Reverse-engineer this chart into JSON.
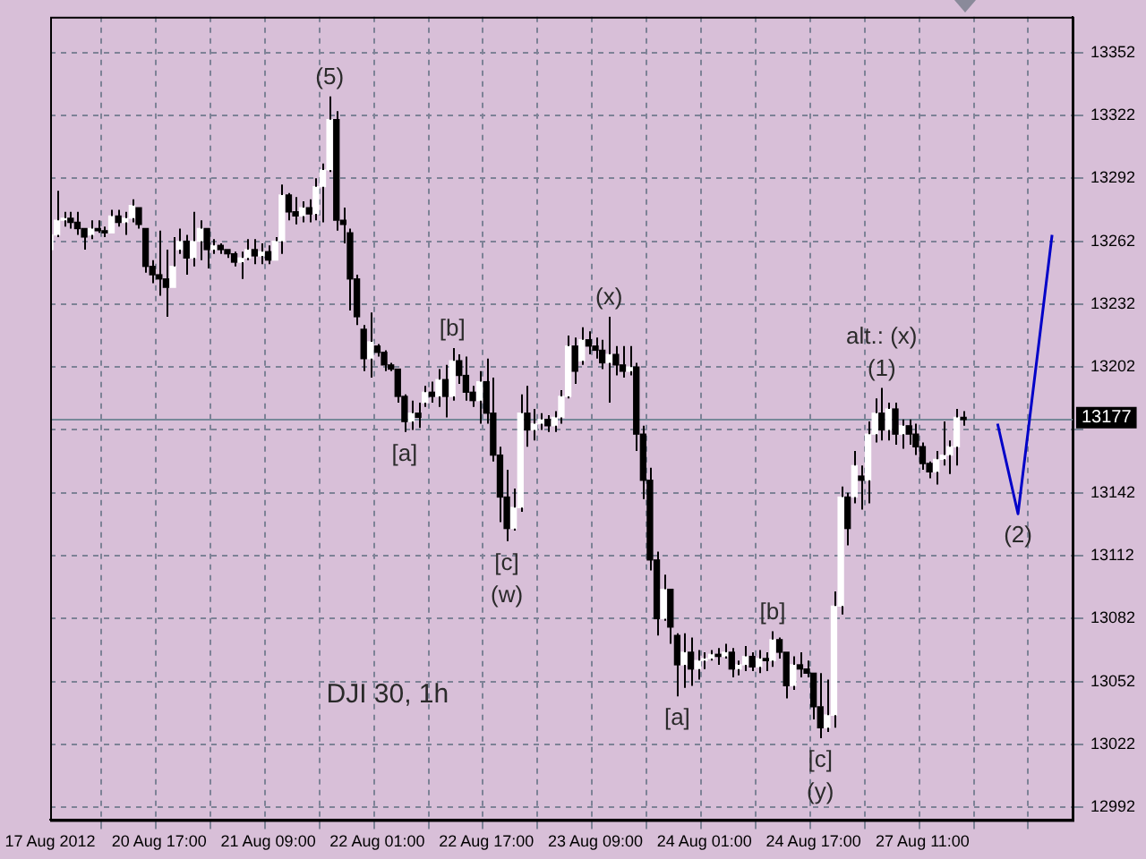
{
  "chart_data": {
    "type": "candlestick",
    "categories": [
      "17 Aug 2012",
      null,
      null,
      null,
      null,
      null,
      null,
      null,
      null,
      null,
      null,
      null,
      null,
      null,
      null,
      null,
      "20 Aug 17:00",
      null,
      null,
      null,
      null,
      null,
      null,
      null,
      null,
      null,
      null,
      null,
      null,
      null,
      null,
      null,
      "21 Aug 09:00",
      null,
      null,
      null,
      null,
      null,
      null,
      null,
      null,
      null,
      null,
      null,
      null,
      null,
      null,
      null,
      "22 Aug 01:00",
      null,
      null,
      null,
      null,
      null,
      null,
      null,
      null,
      null,
      null,
      null,
      null,
      null,
      null,
      null,
      "22 Aug 17:00",
      null,
      null,
      null,
      null,
      null,
      null,
      null,
      null,
      null,
      null,
      null,
      null,
      null,
      null,
      null,
      "23 Aug 09:00",
      null,
      null,
      null,
      null,
      null,
      null,
      null,
      null,
      null,
      null,
      null,
      null,
      null,
      null,
      null,
      "24 Aug 01:00",
      null,
      null,
      null,
      null,
      null,
      null,
      null,
      null,
      null,
      null,
      null,
      null,
      null,
      null,
      null,
      "24 Aug 17:00",
      null,
      null,
      null,
      null,
      null,
      null,
      null,
      null,
      null,
      null,
      null,
      null,
      null,
      null,
      null,
      "27 Aug 11:00",
      null,
      null,
      null,
      null,
      null,
      null,
      null,
      null,
      null,
      null,
      null,
      null,
      null,
      null,
      null,
      null,
      null,
      null,
      null,
      null,
      null,
      null
    ],
    "ohlc": [
      [
        13258,
        13268,
        13253,
        13265
      ],
      [
        13265,
        13286,
        13264,
        13272
      ],
      [
        13272,
        13276,
        13269,
        13273
      ],
      [
        13273,
        13276,
        13268,
        13271
      ],
      [
        13271,
        13276,
        13265,
        13268
      ],
      [
        13268,
        13268,
        13258,
        13264
      ],
      [
        13265,
        13272,
        13263,
        13268
      ],
      [
        13268,
        13272,
        13266,
        13267
      ],
      [
        13267,
        13269,
        13264,
        13266
      ],
      [
        13266,
        13277,
        13266,
        13274
      ],
      [
        13274,
        13277,
        13269,
        13271
      ],
      [
        13271,
        13276,
        13265,
        13273
      ],
      [
        13273,
        13282,
        13271,
        13279
      ],
      [
        13278,
        13278,
        13268,
        13270
      ],
      [
        13268,
        13268,
        13247,
        13250
      ],
      [
        13250,
        13253,
        13242,
        13246
      ],
      [
        13246,
        13267,
        13236,
        13244
      ],
      [
        13244,
        13258,
        13226,
        13240
      ],
      [
        13240,
        13264,
        13240,
        13250
      ],
      [
        13258,
        13268,
        13256,
        13262
      ],
      [
        13262,
        13265,
        13246,
        13254
      ],
      [
        13254,
        13276,
        13250,
        13262
      ],
      [
        13262,
        13272,
        13253,
        13268
      ],
      [
        13268,
        13268,
        13249,
        13258
      ],
      [
        13258,
        13263,
        13256,
        13260
      ],
      [
        13260,
        13261,
        13256,
        13258
      ],
      [
        13258,
        13258,
        13254,
        13256
      ],
      [
        13256,
        13257,
        13250,
        13252
      ],
      [
        13252,
        13257,
        13244,
        13254
      ],
      [
        13254,
        13263,
        13253,
        13258
      ],
      [
        13258,
        13263,
        13251,
        13255
      ],
      [
        13255,
        13261,
        13251,
        13257
      ],
      [
        13257,
        13260,
        13251,
        13253
      ],
      [
        13253,
        13264,
        13253,
        13262
      ],
      [
        13262,
        13289,
        13256,
        13284
      ],
      [
        13284,
        13285,
        13272,
        13276
      ],
      [
        13276,
        13283,
        13270,
        13274
      ],
      [
        13274,
        13281,
        13271,
        13278
      ],
      [
        13278,
        13282,
        13271,
        13275
      ],
      [
        13275,
        13292,
        13272,
        13288
      ],
      [
        13288,
        13299,
        13271,
        13296
      ],
      [
        13296,
        13331,
        13295,
        13320
      ],
      [
        13320,
        13324,
        13267,
        13272
      ],
      [
        13272,
        13278,
        13261,
        13270
      ],
      [
        13266,
        13268,
        13229,
        13244
      ],
      [
        13244,
        13246,
        13222,
        13226
      ],
      [
        13220,
        13222,
        13200,
        13206
      ],
      [
        13206,
        13228,
        13197,
        13214
      ],
      [
        13212,
        13213,
        13207,
        13209
      ],
      [
        13209,
        13210,
        13200,
        13203
      ],
      [
        13203,
        13204,
        13200,
        13201
      ],
      [
        13201,
        13201,
        13185,
        13188
      ],
      [
        13188,
        13189,
        13171,
        13176
      ],
      [
        13176,
        13186,
        13172,
        13180
      ],
      [
        13180,
        13185,
        13173,
        13178
      ],
      [
        13185,
        13193,
        13183,
        13190
      ],
      [
        13190,
        13195,
        13185,
        13188
      ],
      [
        13188,
        13201,
        13183,
        13196
      ],
      [
        13196,
        13203,
        13178,
        13188
      ],
      [
        13188,
        13211,
        13186,
        13205
      ],
      [
        13205,
        13208,
        13194,
        13198
      ],
      [
        13198,
        13207,
        13186,
        13190
      ],
      [
        13190,
        13193,
        13183,
        13186
      ],
      [
        13186,
        13200,
        13175,
        13195
      ],
      [
        13195,
        13206,
        13175,
        13180
      ],
      [
        13180,
        13197,
        13157,
        13160
      ],
      [
        13160,
        13164,
        13128,
        13140
      ],
      [
        13140,
        13153,
        13119,
        13125
      ],
      [
        13125,
        13144,
        13124,
        13135
      ],
      [
        13135,
        13189,
        13133,
        13180
      ],
      [
        13180,
        13193,
        13164,
        13172
      ],
      [
        13172,
        13182,
        13167,
        13175
      ],
      [
        13175,
        13180,
        13172,
        13177
      ],
      [
        13177,
        13179,
        13171,
        13174
      ],
      [
        13174,
        13181,
        13171,
        13178
      ],
      [
        13178,
        13191,
        13175,
        13188
      ],
      [
        13188,
        13217,
        13187,
        13212
      ],
      [
        13212,
        13216,
        13194,
        13200
      ],
      [
        13205,
        13221,
        13203,
        13215
      ],
      [
        13215,
        13219,
        13208,
        13212
      ],
      [
        13212,
        13216,
        13206,
        13210
      ],
      [
        13210,
        13215,
        13201,
        13204
      ],
      [
        13204,
        13226,
        13185,
        13208
      ],
      [
        13208,
        13212,
        13198,
        13203
      ],
      [
        13203,
        13212,
        13197,
        13200
      ],
      [
        13200,
        13212,
        13198,
        13202
      ],
      [
        13202,
        13204,
        13162,
        13170
      ],
      [
        13170,
        13174,
        13139,
        13148
      ],
      [
        13148,
        13154,
        13105,
        13110
      ],
      [
        13110,
        13114,
        13074,
        13082
      ],
      [
        13082,
        13103,
        13081,
        13096
      ],
      [
        13096,
        13096,
        13070,
        13078
      ],
      [
        13074,
        13075,
        13045,
        13060
      ],
      [
        13060,
        13075,
        13049,
        13066
      ],
      [
        13066,
        13073,
        13050,
        13058
      ],
      [
        13058,
        13067,
        13053,
        13062
      ],
      [
        13062,
        13066,
        13058,
        13063
      ],
      [
        13063,
        13067,
        13062,
        13065
      ],
      [
        13065,
        13068,
        13060,
        13064
      ],
      [
        13064,
        13070,
        13063,
        13066
      ],
      [
        13066,
        13068,
        13054,
        13058
      ],
      [
        13058,
        13062,
        13055,
        13060
      ],
      [
        13060,
        13069,
        13057,
        13064
      ],
      [
        13064,
        13066,
        13057,
        13059
      ],
      [
        13059,
        13067,
        13056,
        13063
      ],
      [
        13063,
        13066,
        13057,
        13062
      ],
      [
        13062,
        13076,
        13059,
        13072
      ],
      [
        13072,
        13073,
        13063,
        13066
      ],
      [
        13066,
        13066,
        13044,
        13050
      ],
      [
        13050,
        13064,
        13048,
        13060
      ],
      [
        13060,
        13066,
        13054,
        13058
      ],
      [
        13058,
        13062,
        13054,
        13056
      ],
      [
        13056,
        13056,
        13034,
        13040
      ],
      [
        13040,
        13056,
        13025,
        13030
      ],
      [
        13030,
        13053,
        13028,
        13036
      ],
      [
        13036,
        13095,
        13030,
        13088
      ],
      [
        13088,
        13145,
        13084,
        13140
      ],
      [
        13140,
        13142,
        13117,
        13125
      ],
      [
        13140,
        13162,
        13137,
        13155
      ],
      [
        13150,
        13155,
        13134,
        13148
      ],
      [
        13148,
        13176,
        13137,
        13170
      ],
      [
        13170,
        13187,
        13166,
        13180
      ],
      [
        13180,
        13192,
        13167,
        13172
      ],
      [
        13172,
        13185,
        13167,
        13182
      ],
      [
        13182,
        13185,
        13165,
        13170
      ],
      [
        13170,
        13177,
        13163,
        13174
      ],
      [
        13174,
        13177,
        13165,
        13170
      ],
      [
        13170,
        13175,
        13160,
        13164
      ],
      [
        13164,
        13166,
        13153,
        13156
      ],
      [
        13156,
        13157,
        13149,
        13152
      ],
      [
        13152,
        13162,
        13146,
        13158
      ],
      [
        13158,
        13176,
        13155,
        13160
      ],
      [
        13160,
        13167,
        13151,
        13164
      ],
      [
        13164,
        13182,
        13155,
        13178
      ],
      [
        13178,
        13181,
        13174,
        13177
      ],
      null,
      null,
      null,
      null,
      null,
      null,
      null,
      null,
      null,
      null,
      null,
      null,
      null,
      null,
      null,
      null
    ],
    "color": "#000000",
    "colors": [
      "#ffffff",
      "#ffffff",
      "#ffffff",
      "#000000",
      "#000000",
      "#000000",
      "#ffffff",
      "#000000",
      "#000000",
      "#ffffff",
      "#000000",
      "#ffffff",
      "#ffffff",
      "#000000",
      "#000000",
      "#000000",
      "#000000",
      "#000000",
      "#ffffff",
      "#ffffff",
      "#000000",
      "#ffffff",
      "#ffffff",
      "#000000",
      "#ffffff",
      "#000000",
      "#000000",
      "#000000",
      "#ffffff",
      "#ffffff",
      "#000000",
      "#ffffff",
      "#000000",
      "#ffffff",
      "#ffffff",
      "#000000",
      "#000000",
      "#ffffff",
      "#000000",
      "#ffffff",
      "#ffffff",
      "#ffffff",
      "#000000",
      "#000000",
      "#000000",
      "#000000",
      "#000000",
      "#ffffff",
      "#000000",
      "#000000",
      "#000000",
      "#000000",
      "#000000",
      "#ffffff",
      "#000000",
      "#ffffff",
      "#000000",
      "#ffffff",
      "#000000",
      "#ffffff",
      "#000000",
      "#000000",
      "#000000",
      "#ffffff",
      "#000000",
      "#000000",
      "#000000",
      "#000000",
      "#ffffff",
      "#ffffff",
      "#000000",
      "#ffffff",
      "#ffffff",
      "#000000",
      "#ffffff",
      "#ffffff",
      "#ffffff",
      "#000000",
      "#ffffff",
      "#000000",
      "#000000",
      "#000000",
      "#ffffff",
      "#000000",
      "#000000",
      "#ffffff",
      "#000000",
      "#000000",
      "#000000",
      "#000000",
      "#ffffff",
      "#000000",
      "#000000",
      "#ffffff",
      "#000000",
      "#ffffff",
      "#ffffff",
      "#ffffff",
      "#000000",
      "#ffffff",
      "#000000",
      "#ffffff",
      "#ffffff",
      "#000000",
      "#ffffff",
      "#000000",
      "#ffffff",
      "#000000",
      "#000000",
      "#ffffff",
      "#000000",
      "#000000",
      "#000000",
      "#000000",
      "#ffffff",
      "#ffffff",
      "#ffffff",
      "#000000",
      "#ffffff",
      "#000000",
      "#ffffff",
      "#ffffff",
      "#000000",
      "#ffffff",
      "#000000",
      "#ffffff",
      "#000000",
      "#000000",
      "#000000",
      "#000000",
      "#ffffff",
      "#ffffff",
      "#ffffff",
      "#ffffff",
      "#000000",
      null,
      null,
      null,
      null,
      null,
      null,
      null,
      null,
      null,
      null,
      null,
      null,
      null,
      null,
      null,
      null
    ],
    "series": [
      {
        "type": "line",
        "color": "#0000c8",
        "values": [
          null,
          null,
          null,
          null,
          null,
          null,
          null,
          null,
          null,
          null,
          null,
          null,
          null,
          null,
          null,
          null,
          null,
          null,
          null,
          null,
          null,
          null,
          null,
          null,
          null,
          null,
          null,
          null,
          null,
          null,
          null,
          null,
          null,
          null,
          null,
          null,
          null,
          null,
          null,
          null,
          null,
          null,
          null,
          null,
          null,
          null,
          null,
          null,
          null,
          null,
          null,
          null,
          null,
          null,
          null,
          null,
          null,
          null,
          null,
          null,
          null,
          null,
          null,
          null,
          null,
          null,
          null,
          null,
          null,
          null,
          null,
          null,
          null,
          null,
          null,
          null,
          null,
          null,
          null,
          null,
          null,
          null,
          null,
          null,
          null,
          null,
          null,
          null,
          null,
          null,
          null,
          null,
          null,
          null,
          null,
          null,
          null,
          null,
          null,
          null,
          null,
          null,
          null,
          null,
          null,
          null,
          null,
          null,
          null,
          null,
          null,
          null,
          null,
          null,
          null,
          null,
          null,
          null,
          null,
          null,
          null,
          null,
          null,
          null,
          null,
          null,
          null,
          null,
          null,
          null,
          null,
          null,
          null,
          null,
          null,
          null,
          null,
          null,
          null,
          13175,
          null,
          null,
          13132,
          null,
          null,
          null,
          null,
          13265,
          null,
          null,
          null
        ]
      }
    ],
    "ylim": [
      12986,
      13369
    ],
    "yticks": [
      12992,
      13022,
      13052,
      13082,
      13112,
      13142,
      {
        "value": 13172,
        "label": null
      },
      13202,
      13232,
      13262,
      13292,
      13322,
      13352
    ],
    "grid": true,
    "ref_lines": [
      {
        "axis": "y",
        "value": 13177,
        "label": "13177",
        "color": "#778899"
      }
    ],
    "annotations": [
      {
        "text": "(5)",
        "y": 13331
      },
      {
        "text": "[a]",
        "y": 13171
      },
      {
        "text": "[b]",
        "y": 13211
      },
      {
        "text": "[c]",
        "y": 13119
      },
      {
        "text": "(w)",
        "y": 13119
      },
      {
        "text": "(x)",
        "y": 13226
      },
      {
        "text": "[a]",
        "y": 13045
      },
      {
        "text": "[b]",
        "y": 13076
      },
      {
        "text": "[c]",
        "y": 13025
      },
      {
        "text": "(y)",
        "y": 13025
      },
      {
        "text": "(1)",
        "y": 13192
      },
      {
        "text": "alt.: (x)",
        "y": 13192
      },
      {
        "text": "(2)",
        "y": 13132
      },
      "DJI 30, 1h"
    ]
  }
}
